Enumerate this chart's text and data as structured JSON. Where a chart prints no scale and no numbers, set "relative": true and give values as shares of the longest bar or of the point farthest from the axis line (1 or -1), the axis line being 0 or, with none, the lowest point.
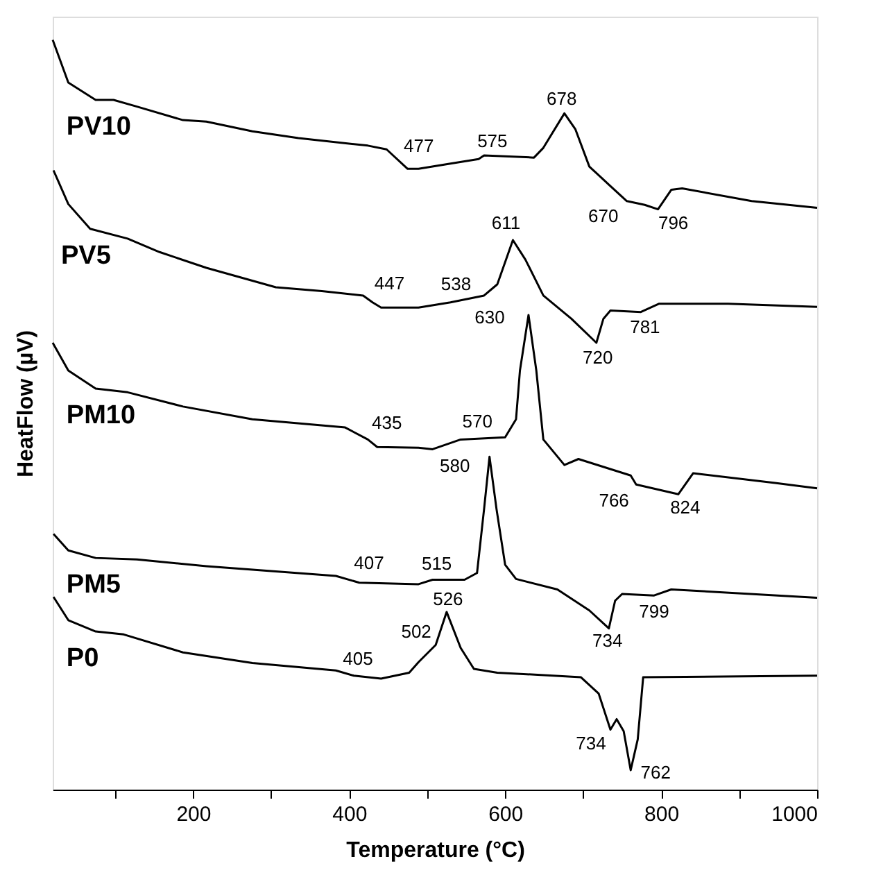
{
  "chart_data": {
    "type": "line",
    "relative": true,
    "xlabel": "Temperature (°C)",
    "ylabel": "HeatFlow (µV)",
    "xlim": [
      20,
      1000
    ],
    "xticks": [
      {
        "value": 100,
        "label": null
      },
      200,
      {
        "value": 300,
        "label": null
      },
      400,
      {
        "value": 500,
        "label": null
      },
      600,
      {
        "value": 700,
        "label": null
      },
      800,
      {
        "value": 900,
        "label": null
      },
      1000
    ],
    "grid": false,
    "legend": false,
    "marker": "none",
    "line_style": "solid",
    "series": [
      {
        "name": "PV10",
        "color": "#000000",
        "x": [
          20,
          40,
          75,
          98,
          128,
          187,
          217,
          276,
          335,
          424,
          448,
          475,
          489,
          530,
          566,
          573,
          637,
          649,
          676,
          690,
          708,
          733,
          756,
          779,
          796,
          813,
          827,
          916,
          1000
        ],
        "values": [
          1.0,
          0.943,
          0.92,
          0.92,
          0.911,
          0.893,
          0.891,
          0.878,
          0.869,
          0.859,
          0.854,
          0.828,
          0.828,
          0.835,
          0.841,
          0.846,
          0.843,
          0.856,
          0.902,
          0.881,
          0.831,
          0.807,
          0.785,
          0.78,
          0.774,
          0.8,
          0.802,
          0.785,
          0.776
        ]
      },
      {
        "name": "PV5",
        "color": "#000000",
        "x": [
          21,
          40,
          68,
          116,
          157,
          217,
          306,
          365,
          418,
          430,
          441,
          489,
          530,
          573,
          590,
          610,
          626,
          649,
          685,
          717,
          726,
          735,
          774,
          797,
          886,
          1000
        ],
        "values": [
          0.826,
          0.781,
          0.748,
          0.735,
          0.717,
          0.696,
          0.67,
          0.665,
          0.659,
          0.65,
          0.643,
          0.643,
          0.65,
          0.659,
          0.674,
          0.733,
          0.707,
          0.659,
          0.628,
          0.596,
          0.628,
          0.639,
          0.637,
          0.648,
          0.648,
          0.644
        ]
      },
      {
        "name": "PM10",
        "color": "#000000",
        "x": [
          20,
          40,
          75,
          116,
          187,
          276,
          395,
          424,
          436,
          489,
          507,
          543,
          600,
          614,
          619,
          630,
          640,
          649,
          676,
          694,
          761,
          768,
          822,
          841,
          946,
          1000
        ],
        "values": [
          0.596,
          0.559,
          0.535,
          0.53,
          0.511,
          0.494,
          0.483,
          0.467,
          0.457,
          0.456,
          0.454,
          0.467,
          0.47,
          0.494,
          0.559,
          0.633,
          0.559,
          0.467,
          0.433,
          0.441,
          0.419,
          0.407,
          0.394,
          0.422,
          0.409,
          0.402
        ]
      },
      {
        "name": "PM5",
        "color": "#000000",
        "x": [
          21,
          40,
          75,
          128,
          217,
          383,
          413,
          489,
          507,
          548,
          564,
          573,
          580,
          589,
          600,
          614,
          667,
          708,
          733,
          741,
          750,
          791,
          813,
          1000
        ],
        "values": [
          0.341,
          0.319,
          0.309,
          0.307,
          0.298,
          0.285,
          0.276,
          0.274,
          0.28,
          0.28,
          0.289,
          0.374,
          0.444,
          0.374,
          0.3,
          0.281,
          0.267,
          0.239,
          0.215,
          0.252,
          0.261,
          0.259,
          0.267,
          0.256
        ]
      },
      {
        "name": "P0",
        "color": "#000000",
        "x": [
          21,
          40,
          75,
          111,
          187,
          276,
          383,
          406,
          441,
          477,
          489,
          511,
          525,
          543,
          560,
          590,
          697,
          720,
          735,
          743,
          752,
          761,
          770,
          777,
          1000
        ],
        "values": [
          0.257,
          0.226,
          0.211,
          0.207,
          0.183,
          0.169,
          0.159,
          0.152,
          0.148,
          0.156,
          0.17,
          0.193,
          0.237,
          0.189,
          0.161,
          0.156,
          0.15,
          0.128,
          0.08,
          0.094,
          0.078,
          0.026,
          0.067,
          0.15,
          0.152
        ]
      }
    ],
    "annotations": [
      {
        "text": "477",
        "x": 475,
        "y": 0.828
      },
      {
        "text": "575",
        "x": 573,
        "y": 0.846
      },
      {
        "text": "678",
        "x": 676,
        "y": 0.902
      },
      {
        "text": "670",
        "x": 733,
        "y": 0.807
      },
      {
        "text": "796",
        "x": 796,
        "y": 0.774
      },
      {
        "text": "447",
        "x": 441,
        "y": 0.643
      },
      {
        "text": "538",
        "x": 530,
        "y": 0.65
      },
      {
        "text": "611",
        "x": 610,
        "y": 0.733
      },
      {
        "text": "630",
        "x": 630,
        "y": 0.633
      },
      {
        "text": "720",
        "x": 717,
        "y": 0.596
      },
      {
        "text": "781",
        "x": 774,
        "y": 0.637
      },
      {
        "text": "435",
        "x": 436,
        "y": 0.457
      },
      {
        "text": "570",
        "x": 600,
        "y": 0.47
      },
      {
        "text": "580",
        "x": 580,
        "y": 0.444
      },
      {
        "text": "766",
        "x": 768,
        "y": 0.407
      },
      {
        "text": "824",
        "x": 822,
        "y": 0.394
      },
      {
        "text": "407",
        "x": 413,
        "y": 0.276
      },
      {
        "text": "515",
        "x": 507,
        "y": 0.28
      },
      {
        "text": "734",
        "x": 733,
        "y": 0.215
      },
      {
        "text": "799",
        "x": 791,
        "y": 0.259
      },
      {
        "text": "405",
        "x": 406,
        "y": 0.152
      },
      {
        "text": "502",
        "x": 511,
        "y": 0.193
      },
      {
        "text": "526",
        "x": 525,
        "y": 0.237
      },
      {
        "text": "734",
        "x": 735,
        "y": 0.08
      },
      {
        "text": "762",
        "x": 761,
        "y": 0.026
      }
    ]
  }
}
